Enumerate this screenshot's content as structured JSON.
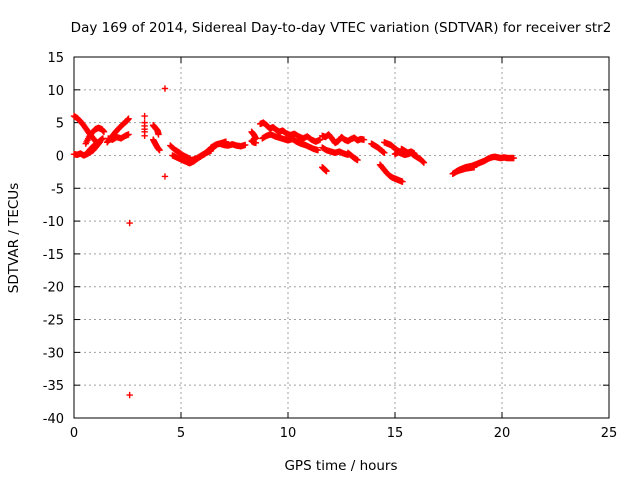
{
  "chart_data": {
    "type": "scatter",
    "title": "Day 169 of 2014, Sidereal Day-to-day VTEC variation (SDTVAR) for receiver str2",
    "xlabel": "GPS time / hours",
    "ylabel": "SDTVAR / TECUs",
    "xlim": [
      0,
      25
    ],
    "ylim": [
      -40,
      15
    ],
    "xticks": [
      0,
      5,
      10,
      15,
      20,
      25
    ],
    "yticks": [
      15,
      10,
      5,
      0,
      -5,
      -10,
      -15,
      -20,
      -25,
      -30,
      -35,
      -40
    ],
    "grid": true,
    "marker": "+",
    "color": "#ff0000",
    "series": [
      {
        "name": "SDTVAR",
        "segments": [
          {
            "x": [
              0.0,
              0.15,
              0.3,
              0.45,
              0.6,
              0.75,
              0.9,
              1.05
            ],
            "y": [
              6.0,
              5.7,
              5.2,
              4.6,
              3.9,
              3.2,
              2.6,
              2.0
            ]
          },
          {
            "x": [
              0.0,
              0.15,
              0.3,
              0.45,
              0.6,
              0.75,
              0.9,
              1.05,
              1.2
            ],
            "y": [
              0.2,
              0.1,
              0.3,
              0.0,
              0.2,
              0.5,
              0.8,
              1.4,
              2.0
            ]
          },
          {
            "x": [
              0.55,
              0.7,
              0.85,
              1.0,
              1.15,
              1.3,
              1.4
            ],
            "y": [
              1.8,
              2.8,
              3.5,
              4.0,
              4.2,
              4.0,
              3.6
            ]
          },
          {
            "x": [
              0.6,
              0.75,
              0.9,
              1.05,
              1.2,
              1.35
            ],
            "y": [
              0.3,
              0.9,
              1.4,
              1.8,
              2.2,
              2.6
            ]
          },
          {
            "x": [
              1.55,
              1.7,
              1.85,
              2.0,
              2.15,
              2.3,
              2.45,
              2.55
            ],
            "y": [
              2.0,
              2.6,
              3.2,
              3.8,
              4.3,
              4.8,
              5.2,
              5.6
            ]
          },
          {
            "x": [
              1.6,
              1.8,
              2.0,
              2.2,
              2.4,
              2.55
            ],
            "y": [
              2.6,
              2.4,
              2.8,
              2.6,
              3.0,
              3.2
            ]
          },
          {
            "x": [
              2.6,
              2.6,
              3.3,
              3.3,
              3.3,
              3.3,
              3.3,
              3.3
            ],
            "y": [
              -10.3,
              -36.5,
              6.0,
              5.0,
              4.5,
              4.0,
              3.6,
              3.0
            ]
          },
          {
            "x": [
              3.7,
              3.8,
              3.9,
              3.95
            ],
            "y": [
              4.6,
              4.2,
              3.8,
              3.2
            ]
          },
          {
            "x": [
              3.7,
              3.8,
              3.9,
              4.0
            ],
            "y": [
              2.4,
              1.8,
              1.2,
              0.8
            ]
          },
          {
            "x": [
              4.25,
              4.25
            ],
            "y": [
              10.2,
              -3.2
            ]
          },
          {
            "x": [
              4.5,
              4.7,
              4.9,
              5.1,
              5.3,
              5.5,
              5.7,
              5.9,
              6.1,
              6.3,
              6.5,
              6.7,
              6.9,
              7.1
            ],
            "y": [
              1.5,
              0.9,
              0.5,
              0.0,
              -0.3,
              -0.7,
              -0.5,
              -0.1,
              0.3,
              0.8,
              1.2,
              1.7,
              1.9,
              2.1
            ]
          },
          {
            "x": [
              4.6,
              4.8,
              5.0,
              5.2,
              5.4,
              5.6,
              5.8,
              6.0,
              6.2,
              6.4
            ],
            "y": [
              0.0,
              -0.3,
              -0.6,
              -0.9,
              -1.2,
              -0.9,
              -0.4,
              0.0,
              0.4,
              0.7
            ]
          },
          {
            "x": [
              6.4,
              6.6,
              6.8,
              7.0,
              7.2,
              7.4,
              7.6,
              7.8,
              8.0
            ],
            "y": [
              1.2,
              1.6,
              1.8,
              1.6,
              1.5,
              1.7,
              1.5,
              1.4,
              1.6
            ]
          },
          {
            "x": [
              8.3,
              8.4,
              8.5,
              8.3,
              8.4,
              8.5
            ],
            "y": [
              3.6,
              3.2,
              2.6,
              2.2,
              2.0,
              1.9
            ]
          },
          {
            "x": [
              8.7,
              8.85,
              9.0,
              9.15,
              9.3,
              9.45,
              9.6,
              9.75,
              9.9,
              10.1,
              10.3,
              10.5,
              10.7,
              10.9,
              11.1,
              11.3,
              11.5
            ],
            "y": [
              4.8,
              5.0,
              4.6,
              4.1,
              4.3,
              3.9,
              3.6,
              3.8,
              3.4,
              3.1,
              3.3,
              2.9,
              2.6,
              2.9,
              2.4,
              2.1,
              2.4
            ]
          },
          {
            "x": [
              8.8,
              9.0,
              9.2,
              9.4,
              9.6,
              9.8,
              10.0,
              10.2,
              10.4,
              10.6,
              10.8,
              11.0,
              11.2,
              11.4
            ],
            "y": [
              2.6,
              3.0,
              3.2,
              2.9,
              2.7,
              2.5,
              2.3,
              2.5,
              2.1,
              1.8,
              1.6,
              1.3,
              1.0,
              0.8
            ]
          },
          {
            "x": [
              11.6,
              11.7,
              11.8
            ],
            "y": [
              -1.8,
              -2.1,
              -2.4
            ]
          },
          {
            "x": [
              11.6,
              11.75,
              11.9,
              12.05,
              12.2,
              12.35,
              12.5,
              12.65,
              12.8,
              12.95,
              13.1,
              13.25,
              13.4,
              13.55
            ],
            "y": [
              3.0,
              2.8,
              3.2,
              2.6,
              1.9,
              2.2,
              2.8,
              2.4,
              2.2,
              2.5,
              2.7,
              2.3,
              2.5,
              2.4
            ]
          },
          {
            "x": [
              11.6,
              11.8,
              12.0,
              12.2,
              12.4,
              12.6,
              12.8
            ],
            "y": [
              1.2,
              0.8,
              0.6,
              0.4,
              0.6,
              0.3,
              0.1
            ]
          },
          {
            "x": [
              12.8,
              12.95,
              13.1,
              13.25
            ],
            "y": [
              0.4,
              0.0,
              -0.4,
              -0.7
            ]
          },
          {
            "x": [
              13.9,
              14.05,
              14.2,
              14.35,
              14.5
            ],
            "y": [
              1.8,
              1.5,
              1.2,
              0.8,
              0.4
            ]
          },
          {
            "x": [
              14.3,
              14.45,
              14.6,
              14.75,
              14.9,
              15.05,
              15.2,
              15.35
            ],
            "y": [
              -1.4,
              -2.0,
              -2.6,
              -3.1,
              -3.4,
              -3.6,
              -3.8,
              -4.0
            ]
          },
          {
            "x": [
              14.5,
              14.65,
              14.8,
              14.95,
              15.1,
              15.25
            ],
            "y": [
              2.0,
              1.8,
              1.6,
              1.2,
              0.8,
              0.5
            ]
          },
          {
            "x": [
              15.0,
              15.15,
              15.3,
              15.45,
              15.6,
              15.75,
              15.9,
              16.05,
              16.2,
              16.35
            ],
            "y": [
              0.2,
              0.5,
              0.3,
              0.1,
              0.2,
              0.4,
              0.0,
              -0.3,
              -0.6,
              -1.1
            ]
          },
          {
            "x": [
              15.3,
              15.45,
              15.6,
              15.75,
              15.9
            ],
            "y": [
              1.0,
              0.7,
              0.4,
              0.6,
              0.3
            ]
          },
          {
            "x": [
              17.7,
              17.85,
              18.0,
              18.15,
              18.3,
              18.45,
              18.6,
              18.75,
              18.9,
              19.05,
              19.2,
              19.35,
              19.5,
              19.65,
              19.8,
              19.95,
              20.1,
              20.25,
              20.4,
              20.55
            ],
            "y": [
              -2.8,
              -2.5,
              -2.2,
              -2.0,
              -1.8,
              -1.7,
              -1.6,
              -1.4,
              -1.2,
              -1.0,
              -0.8,
              -0.5,
              -0.3,
              -0.2,
              -0.3,
              -0.4,
              -0.3,
              -0.4,
              -0.4,
              -0.4
            ]
          },
          {
            "x": [
              17.9,
              18.1,
              18.3,
              18.5,
              18.7
            ],
            "y": [
              -2.4,
              -2.2,
              -2.0,
              -1.9,
              -1.8
            ]
          }
        ]
      }
    ]
  }
}
